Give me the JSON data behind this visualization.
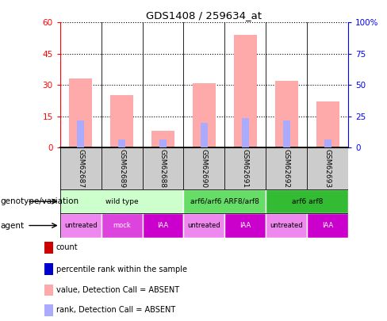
{
  "title": "GDS1408 / 259634_at",
  "samples": [
    "GSM62687",
    "GSM62689",
    "GSM62688",
    "GSM62690",
    "GSM62691",
    "GSM62692",
    "GSM62693"
  ],
  "absent_value_bars": [
    33,
    25,
    8,
    31,
    54,
    32,
    22
  ],
  "absent_rank_bars": [
    13,
    4,
    4,
    12,
    14,
    13,
    4
  ],
  "ylim_left": [
    0,
    60
  ],
  "ylim_right": [
    0,
    100
  ],
  "yticks_left": [
    0,
    15,
    30,
    45,
    60
  ],
  "yticks_right": [
    0,
    25,
    50,
    75,
    100
  ],
  "ytick_right_labels": [
    "0",
    "25",
    "50",
    "75",
    "100%"
  ],
  "genotype_groups": [
    {
      "label": "wild type",
      "start": 0,
      "end": 3,
      "color": "#ccffcc"
    },
    {
      "label": "arf6/arf6 ARF8/arf8",
      "start": 3,
      "end": 5,
      "color": "#66dd66"
    },
    {
      "label": "arf6 arf8",
      "start": 5,
      "end": 7,
      "color": "#33bb33"
    }
  ],
  "agent_groups": [
    {
      "label": "untreated",
      "start": 0,
      "end": 1,
      "color": "#ee88ee"
    },
    {
      "label": "mock",
      "start": 1,
      "end": 2,
      "color": "#dd44dd"
    },
    {
      "label": "IAA",
      "start": 2,
      "end": 3,
      "color": "#cc00cc"
    },
    {
      "label": "untreated",
      "start": 3,
      "end": 4,
      "color": "#ee88ee"
    },
    {
      "label": "IAA",
      "start": 4,
      "end": 5,
      "color": "#cc00cc"
    },
    {
      "label": "untreated",
      "start": 5,
      "end": 6,
      "color": "#ee88ee"
    },
    {
      "label": "IAA",
      "start": 6,
      "end": 7,
      "color": "#cc00cc"
    }
  ],
  "absent_value_color": "#ffaaaa",
  "absent_rank_color": "#aaaaff",
  "count_color": "#cc0000",
  "percentile_color": "#0000cc",
  "sample_bg_color": "#cccccc",
  "legend_items": [
    {
      "label": "count",
      "color": "#cc0000"
    },
    {
      "label": "percentile rank within the sample",
      "color": "#0000cc"
    },
    {
      "label": "value, Detection Call = ABSENT",
      "color": "#ffaaaa"
    },
    {
      "label": "rank, Detection Call = ABSENT",
      "color": "#aaaaff"
    }
  ],
  "genotype_label": "genotype/variation",
  "agent_label": "agent"
}
